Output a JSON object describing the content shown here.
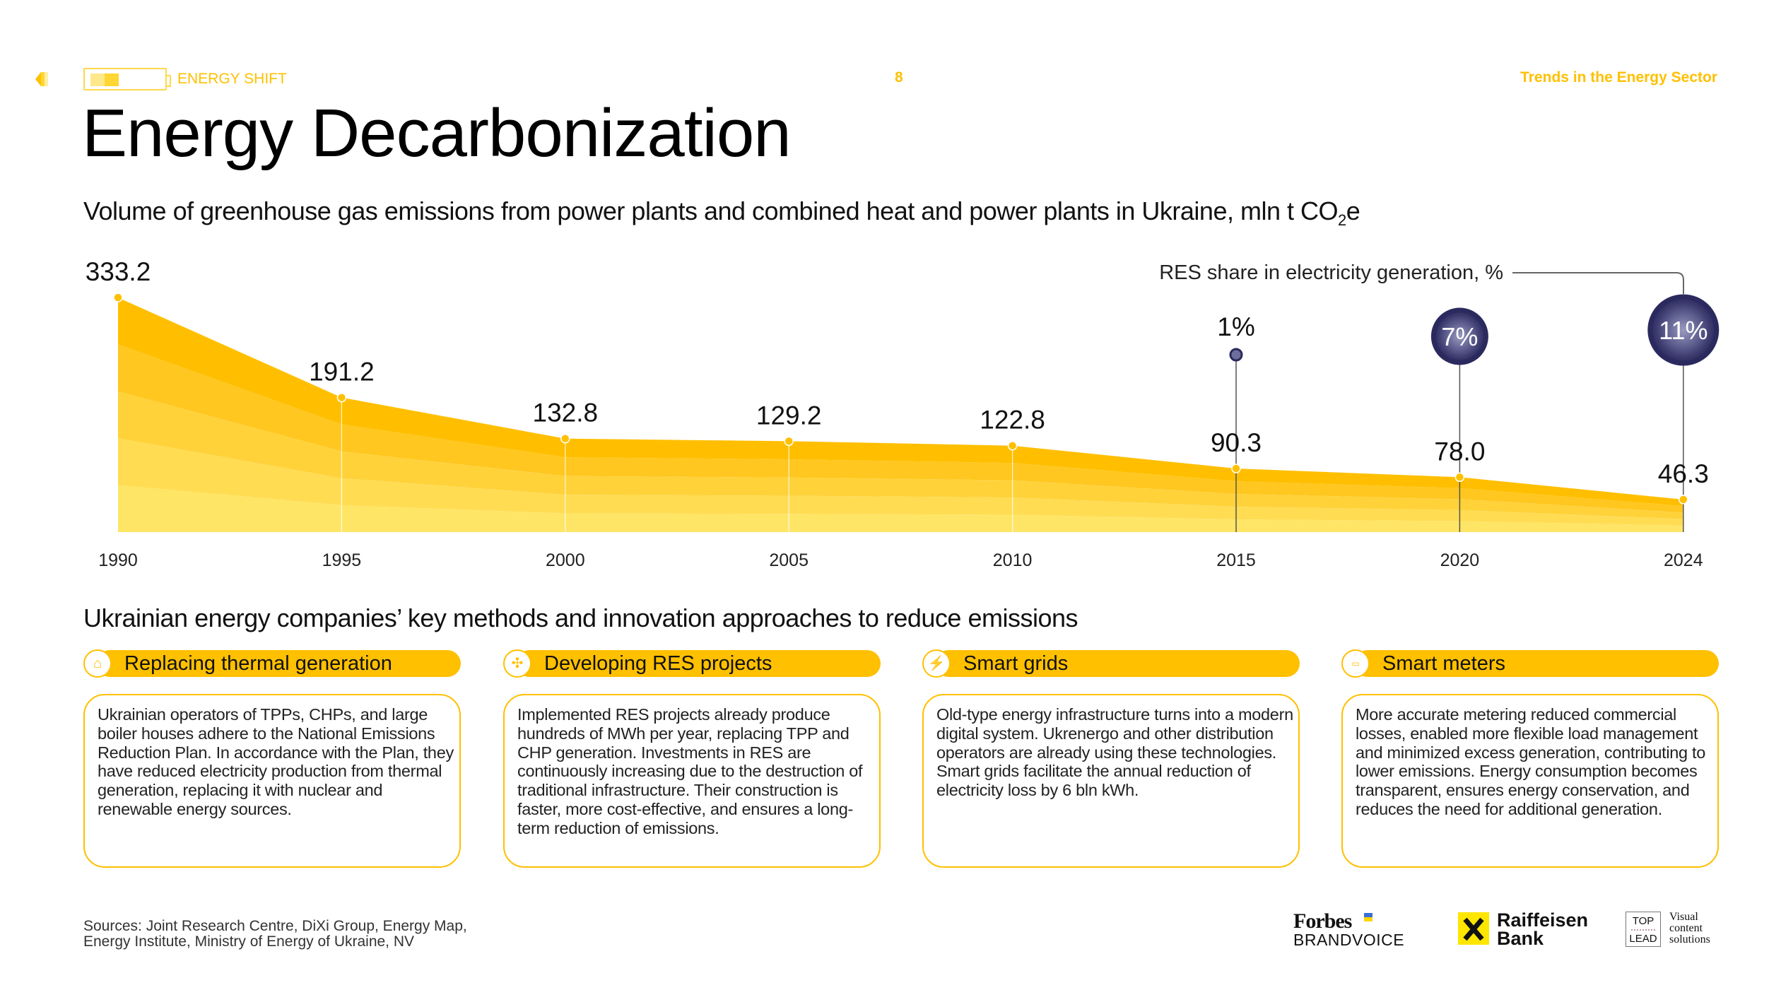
{
  "header": {
    "section": "ENERGY SHIFT",
    "page": "8",
    "series_title": "Trends in the Energy Sector"
  },
  "title": "Energy Decarbonization",
  "subtitle": {
    "main": "Volume of greenhouse gas emissions from power plants and combined heat and power plants in Ukraine, mln t CO",
    "sub": "2",
    "tail": "e"
  },
  "chart_data": {
    "type": "area",
    "categories": [
      "1990",
      "1995",
      "2000",
      "2005",
      "2010",
      "2015",
      "2020",
      "2024"
    ],
    "values": [
      333.2,
      191.2,
      132.8,
      129.2,
      122.8,
      90.3,
      78.0,
      46.3
    ],
    "value_labels": [
      "333.2",
      "191.2",
      "132.8",
      "129.2",
      "122.8",
      "90.3",
      "78.0",
      "46.3"
    ],
    "grid": false,
    "colors": [
      "#FFBF00",
      "#FFC71F",
      "#FFD23A",
      "#FFDC52",
      "#FFE566"
    ],
    "res_share": {
      "label": "RES share in electricity generation, %",
      "points": [
        {
          "year": "2015",
          "value": 1,
          "label": "1%"
        },
        {
          "year": "2020",
          "value": 7,
          "label": "7%"
        },
        {
          "year": "2024",
          "value": 11,
          "label": "11%"
        }
      ],
      "color": "#2B2A5E"
    }
  },
  "methods": {
    "heading": "Ukrainian energy companies’ key methods and innovation approaches to reduce emissions",
    "cards": [
      {
        "icon": "factory-icon",
        "title": "Replacing thermal generation",
        "text": "Ukrainian operators of TPPs, CHPs, and large boiler houses adhere to the National Emissions Reduction Plan. In accordance with the Plan, they have reduced electricity production from thermal generation, replacing it with nuclear and renewable energy sources."
      },
      {
        "icon": "wind-turbine-icon",
        "title": "Developing RES projects",
        "text": "Implemented RES projects already produce hundreds of MWh per year, replacing TPP and CHP generation. Investments in RES are continuously increasing due to the destruction of traditional infrastructure. Their construction is faster, more cost-effective, and ensures a long-term reduction of emissions."
      },
      {
        "icon": "power-tower-icon",
        "title": "Smart grids",
        "text": "Old-type energy infrastructure turns into a modern digital system. Ukrenergo and other distribution operators are already using these technologies. Smart grids facilitate the annual reduction of electricity loss by 6 bln kWh."
      },
      {
        "icon": "meter-icon",
        "title": "Smart meters",
        "text": "More accurate metering reduced commercial losses, enabled more flexible load management and minimized excess generation, contributing to lower emissions. Energy consumption becomes transparent, ensures energy conservation, and reduces the need for additional generation."
      }
    ]
  },
  "sources": {
    "line1": "Sources: Joint Research Centre, DiXi Group, Energy Map,",
    "line2": "Energy Institute, Ministry of Energy of Ukraine, NV"
  },
  "logos": {
    "forbes": "Forbes",
    "brandvoice": "BRANDVOICE",
    "raiffeisen1": "Raiffeisen",
    "raiffeisen2": "Bank",
    "toplead1": "TOP",
    "toplead2": "LEAD",
    "vcs": [
      "Visual",
      "content",
      "solutions"
    ]
  },
  "accent": "#FFC000"
}
